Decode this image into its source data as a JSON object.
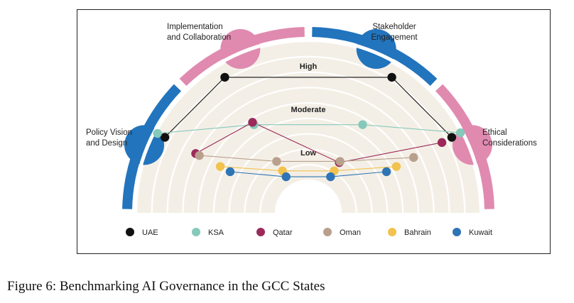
{
  "caption": "Figure 6: Benchmarking AI Governance in the GCC States",
  "chart_data": {
    "type": "radial-scatter",
    "axes": [
      {
        "name": "Policy Vision and Design",
        "lines": [
          "Policy Vision",
          "and Design"
        ]
      },
      {
        "name": "Implementation and Collaboration",
        "lines": [
          "Implementation",
          "and Collaboration"
        ]
      },
      {
        "name": "Stakeholder Engagement",
        "lines": [
          "Stakeholder",
          "Engagement"
        ]
      },
      {
        "name": "Ethical Considerations",
        "lines": [
          "Ethical",
          "Considerations"
        ]
      }
    ],
    "levels": [
      "Low",
      "Moderate",
      "High"
    ],
    "radial_range": [
      0,
      1
    ],
    "colors": {
      "UAE": "#111111",
      "KSA": "#86c9bb",
      "Qatar": "#9b2a5a",
      "Oman": "#b9a08c",
      "Bahrain": "#f2c24e",
      "Kuwait": "#2f74b5"
    },
    "series": [
      {
        "name": "UAE",
        "values": [
          0.93,
          0.91,
          0.91,
          0.93
        ]
      },
      {
        "name": "KSA",
        "values": [
          0.99,
          0.51,
          0.51,
          1.0
        ]
      },
      {
        "name": "Qatar",
        "values": [
          0.68,
          0.53,
          0.19,
          0.85
        ]
      },
      {
        "name": "Oman",
        "values": [
          0.65,
          0.2,
          0.2,
          0.62
        ]
      },
      {
        "name": "Bahrain",
        "values": [
          0.48,
          0.12,
          0.12,
          0.48
        ]
      },
      {
        "name": "Kuwait",
        "values": [
          0.4,
          0.07,
          0.07,
          0.4
        ]
      }
    ]
  }
}
